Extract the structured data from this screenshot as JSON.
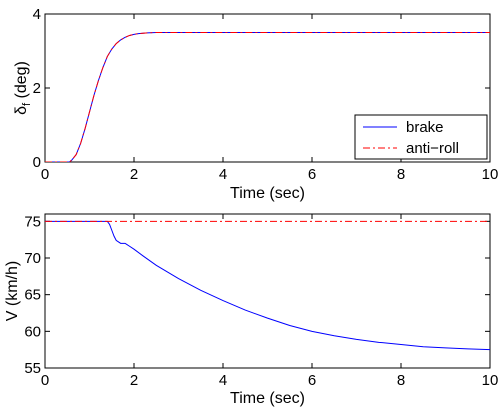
{
  "chart_data": [
    {
      "type": "line",
      "xlabel": "Time (sec)",
      "ylabel": "δf (deg)",
      "ylabel_main": "δ",
      "ylabel_sub": "f",
      "ylabel_rest": " (deg)",
      "xlim": [
        0,
        10
      ],
      "ylim": [
        0,
        4
      ],
      "xticks": [
        0,
        2,
        4,
        6,
        8,
        10
      ],
      "yticks": [
        0,
        2,
        4
      ],
      "grid": false,
      "legend_position": "bottom-right",
      "series": [
        {
          "name": "brake",
          "color": "#0000ff",
          "dash": "solid",
          "x": [
            0,
            0.3,
            0.55,
            0.6,
            0.7,
            0.8,
            0.9,
            1.0,
            1.1,
            1.2,
            1.3,
            1.4,
            1.5,
            1.6,
            1.7,
            1.8,
            1.9,
            2.0,
            2.1,
            2.2,
            2.3,
            2.5,
            2.8,
            3.0,
            4.0,
            5.0,
            6.0,
            7.0,
            8.0,
            9.0,
            10.0
          ],
          "y": [
            0,
            0,
            0.0,
            0.05,
            0.2,
            0.5,
            0.9,
            1.35,
            1.8,
            2.2,
            2.55,
            2.85,
            3.05,
            3.2,
            3.3,
            3.37,
            3.42,
            3.45,
            3.47,
            3.48,
            3.49,
            3.5,
            3.5,
            3.5,
            3.5,
            3.5,
            3.5,
            3.5,
            3.5,
            3.5,
            3.5
          ]
        },
        {
          "name": "anti−roll",
          "color": "#ff0000",
          "dash": "dashdot",
          "x": [
            0,
            0.3,
            0.55,
            0.6,
            0.7,
            0.8,
            0.9,
            1.0,
            1.1,
            1.2,
            1.3,
            1.4,
            1.5,
            1.6,
            1.7,
            1.8,
            1.9,
            2.0,
            2.1,
            2.2,
            2.3,
            2.5,
            2.8,
            3.0,
            4.0,
            5.0,
            6.0,
            7.0,
            8.0,
            9.0,
            10.0
          ],
          "y": [
            0,
            0,
            0.0,
            0.05,
            0.2,
            0.5,
            0.9,
            1.35,
            1.8,
            2.2,
            2.55,
            2.85,
            3.05,
            3.2,
            3.3,
            3.37,
            3.42,
            3.45,
            3.47,
            3.48,
            3.49,
            3.5,
            3.5,
            3.5,
            3.5,
            3.5,
            3.5,
            3.5,
            3.5,
            3.5,
            3.5
          ]
        }
      ]
    },
    {
      "type": "line",
      "xlabel": "Time (sec)",
      "ylabel": "V (km/h)",
      "xlim": [
        0,
        10
      ],
      "ylim": [
        55,
        76
      ],
      "xticks": [
        0,
        2,
        4,
        6,
        8,
        10
      ],
      "yticks": [
        55,
        60,
        65,
        70,
        75
      ],
      "grid": false,
      "series": [
        {
          "name": "brake",
          "color": "#0000ff",
          "dash": "solid",
          "x": [
            0,
            1.4,
            1.45,
            1.5,
            1.55,
            1.6,
            1.7,
            1.8,
            1.9,
            2.0,
            2.2,
            2.5,
            3.0,
            3.5,
            4.0,
            4.5,
            5.0,
            5.5,
            6.0,
            6.5,
            7.0,
            7.5,
            8.0,
            8.5,
            9.0,
            9.5,
            10.0
          ],
          "y": [
            75,
            75,
            74.6,
            73.8,
            73.0,
            72.4,
            72.0,
            72.0,
            71.6,
            71.2,
            70.3,
            69.0,
            67.2,
            65.6,
            64.2,
            62.9,
            61.8,
            60.8,
            60.0,
            59.4,
            58.9,
            58.5,
            58.2,
            57.9,
            57.75,
            57.6,
            57.5
          ]
        },
        {
          "name": "anti−roll",
          "color": "#ff0000",
          "dash": "dashdot",
          "x": [
            0,
            10
          ],
          "y": [
            75,
            75
          ]
        }
      ]
    }
  ]
}
